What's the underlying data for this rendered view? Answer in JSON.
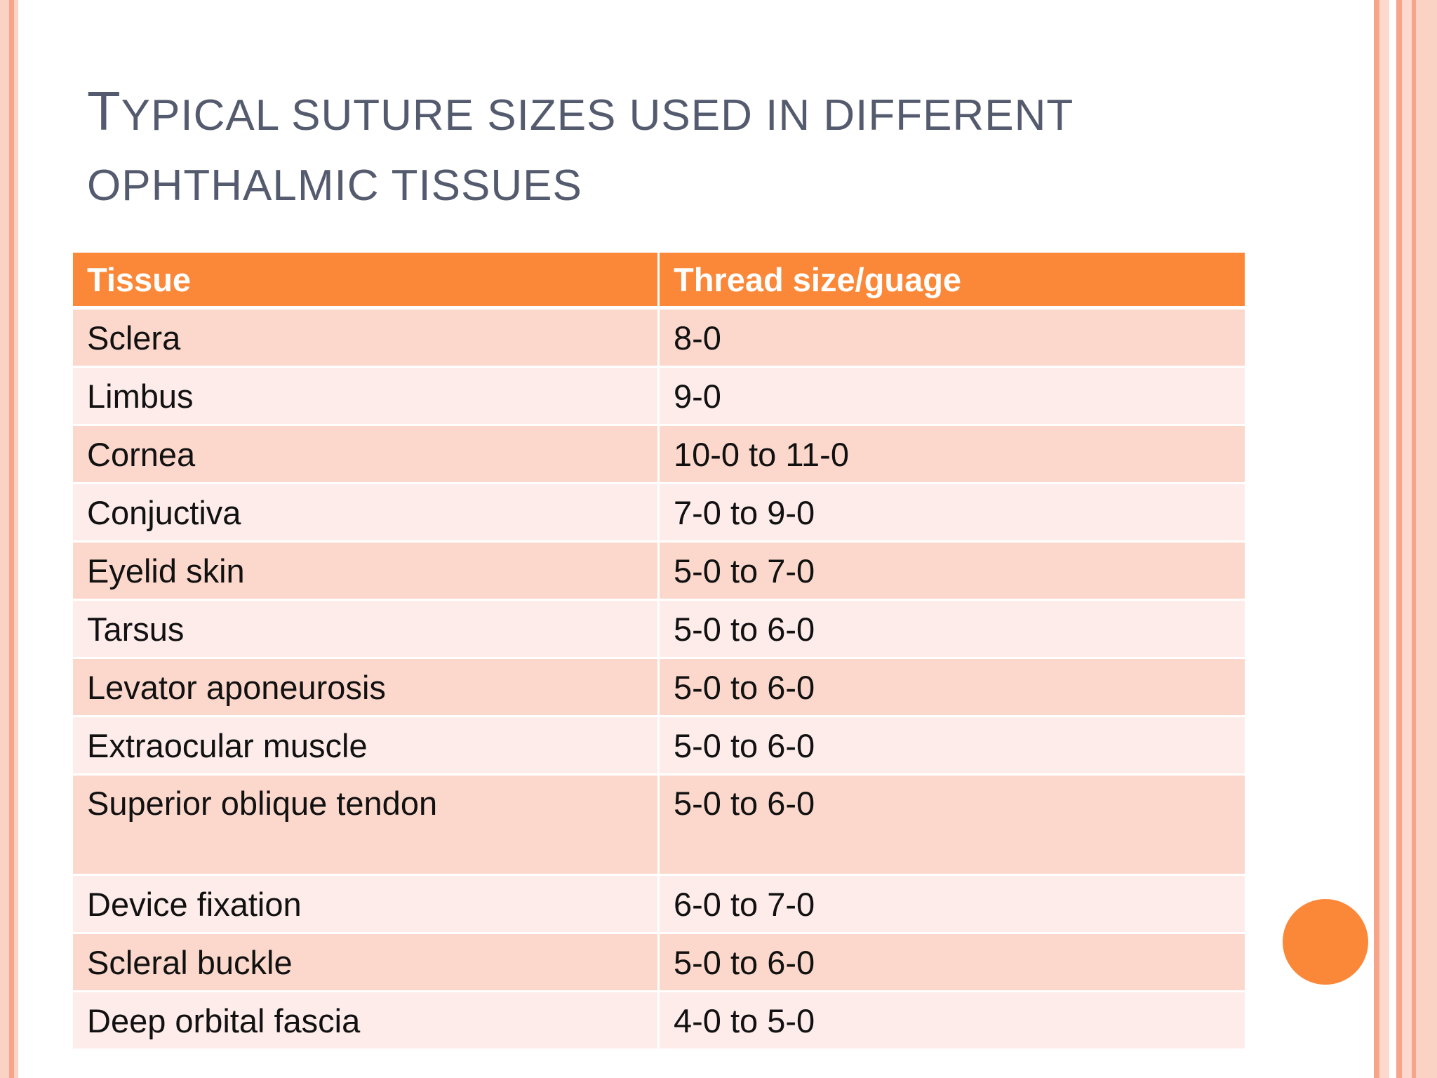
{
  "slide": {
    "title_initial": "T",
    "title_rest": "YPICAL SUTURE SIZES USED IN DIFFERENT",
    "title_line2": "OPHTHALMIC TISSUES"
  },
  "table": {
    "headers": [
      "Tissue",
      "Thread size/guage"
    ],
    "rows": [
      {
        "tissue": "Sclera",
        "size": "8-0"
      },
      {
        "tissue": "Limbus",
        "size": "9-0"
      },
      {
        "tissue": "Cornea",
        "size": "10-0 to 11-0"
      },
      {
        "tissue": "Conjuctiva",
        "size": "7-0 to 9-0"
      },
      {
        "tissue": "Eyelid skin",
        "size": "5-0 to 7-0"
      },
      {
        "tissue": "Tarsus",
        "size": "5-0 to 6-0"
      },
      {
        "tissue": "Levator aponeurosis",
        "size": "5-0 to 6-0"
      },
      {
        "tissue": "Extraocular muscle",
        "size": "5-0 to 6-0"
      },
      {
        "tissue": "Superior oblique tendon",
        "size": "5-0 to 6-0"
      },
      {
        "tissue": "Device fixation",
        "size": "6-0 to 7-0"
      },
      {
        "tissue": "Scleral buckle",
        "size": "5-0 to 6-0"
      },
      {
        "tissue": "Deep orbital fascia",
        "size": "4-0 to 5-0"
      }
    ]
  },
  "theme": {
    "accent": "#fb8839",
    "row_dark": "#fcd8cc",
    "row_light": "#fdecea",
    "title_color": "#555b6e",
    "stripe_color": "#f9a88c"
  }
}
